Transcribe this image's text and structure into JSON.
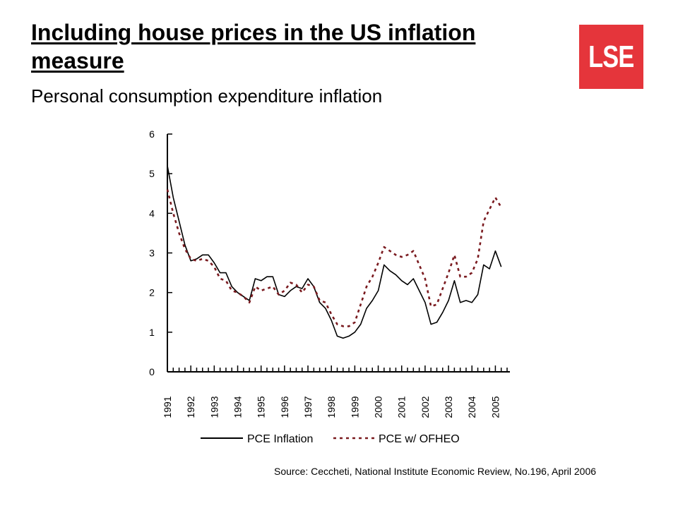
{
  "header": {
    "title": "Including house prices in the US inflation measure",
    "subtitle": "Personal consumption expenditure inflation",
    "logo_text": "LSE"
  },
  "source": "Source: Ceccheti, National Institute Economic Review, No.196, April 2006",
  "colors": {
    "logo_bg": "#e5353b",
    "series1": "#000000",
    "series2": "#7a1a1f"
  },
  "chart_data": {
    "type": "line",
    "title": "",
    "xlabel": "",
    "ylabel": "",
    "xlim": [
      1991,
      2005.5
    ],
    "ylim": [
      0,
      6
    ],
    "yticks": [
      0,
      1,
      2,
      3,
      4,
      5,
      6
    ],
    "xticks": [
      "1991",
      "1992",
      "1993",
      "1994",
      "1995",
      "1996",
      "1997",
      "1998",
      "1999",
      "2000",
      "2001",
      "2002",
      "2003",
      "2004",
      "2005"
    ],
    "grid": false,
    "legend": "bottom",
    "series": [
      {
        "name": "PCE Inflation",
        "style": "solid",
        "x": [
          1991.0,
          1991.25,
          1991.5,
          1991.75,
          1992.0,
          1992.25,
          1992.5,
          1992.75,
          1993.0,
          1993.25,
          1993.5,
          1993.75,
          1994.0,
          1994.25,
          1994.5,
          1994.75,
          1995.0,
          1995.25,
          1995.5,
          1995.75,
          1996.0,
          1996.25,
          1996.5,
          1996.75,
          1997.0,
          1997.25,
          1997.5,
          1997.75,
          1998.0,
          1998.25,
          1998.5,
          1998.75,
          1999.0,
          1999.25,
          1999.5,
          1999.75,
          2000.0,
          2000.25,
          2000.5,
          2000.75,
          2001.0,
          2001.25,
          2001.5,
          2001.75,
          2002.0,
          2002.25,
          2002.5,
          2002.75,
          2003.0,
          2003.25,
          2003.5,
          2003.75,
          2004.0,
          2004.25,
          2004.5,
          2004.75,
          2005.0,
          2005.25
        ],
        "values": [
          5.2,
          4.4,
          3.8,
          3.2,
          2.8,
          2.85,
          2.95,
          2.95,
          2.75,
          2.5,
          2.5,
          2.15,
          2.0,
          1.9,
          1.8,
          2.35,
          2.3,
          2.4,
          2.4,
          1.95,
          1.9,
          2.05,
          2.15,
          2.1,
          2.35,
          2.15,
          1.75,
          1.6,
          1.3,
          0.9,
          0.85,
          0.9,
          1.0,
          1.2,
          1.6,
          1.8,
          2.05,
          2.7,
          2.55,
          2.45,
          2.3,
          2.2,
          2.35,
          2.05,
          1.75,
          1.2,
          1.25,
          1.5,
          1.8,
          2.3,
          1.75,
          1.8,
          1.75,
          1.95,
          2.7,
          2.6,
          3.05,
          2.65
        ]
      },
      {
        "name": "PCE w/ OFHEO",
        "style": "dashed",
        "x": [
          1991.0,
          1991.25,
          1991.5,
          1991.75,
          1992.0,
          1992.25,
          1992.5,
          1992.75,
          1993.0,
          1993.25,
          1993.5,
          1993.75,
          1994.0,
          1994.25,
          1994.5,
          1994.75,
          1995.0,
          1995.25,
          1995.5,
          1995.75,
          1996.0,
          1996.25,
          1996.5,
          1996.75,
          1997.0,
          1997.25,
          1997.5,
          1997.75,
          1998.0,
          1998.25,
          1998.5,
          1998.75,
          1999.0,
          1999.25,
          1999.5,
          1999.75,
          2000.0,
          2000.25,
          2000.5,
          2000.75,
          2001.0,
          2001.25,
          2001.5,
          2001.75,
          2002.0,
          2002.25,
          2002.5,
          2002.75,
          2003.0,
          2003.25,
          2003.5,
          2003.75,
          2004.0,
          2004.25,
          2004.5,
          2004.75,
          2005.0,
          2005.25
        ],
        "values": [
          4.6,
          4.0,
          3.5,
          3.1,
          2.85,
          2.8,
          2.85,
          2.8,
          2.65,
          2.35,
          2.3,
          2.05,
          2.0,
          1.9,
          1.75,
          2.15,
          2.05,
          2.1,
          2.15,
          1.95,
          2.05,
          2.25,
          2.2,
          2.0,
          2.2,
          2.15,
          1.8,
          1.75,
          1.45,
          1.2,
          1.15,
          1.15,
          1.25,
          1.7,
          2.15,
          2.4,
          2.75,
          3.15,
          3.05,
          2.95,
          2.9,
          2.95,
          3.05,
          2.7,
          2.35,
          1.65,
          1.7,
          2.1,
          2.5,
          2.95,
          2.4,
          2.4,
          2.5,
          2.85,
          3.8,
          4.1,
          4.4,
          4.15
        ]
      }
    ]
  }
}
